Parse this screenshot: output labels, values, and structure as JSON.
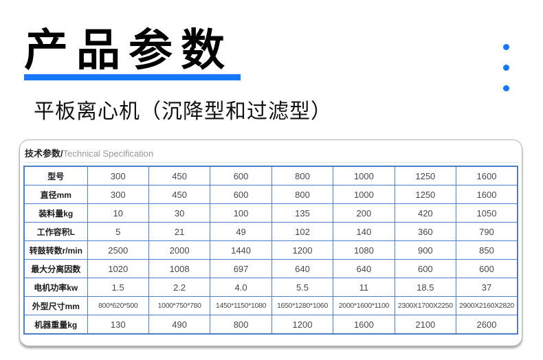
{
  "page": {
    "title": "产品参数",
    "subtitle": "平板离心机（沉降型和过滤型）"
  },
  "colors": {
    "accent": "#1777ff",
    "table_border": "#4f7ec9"
  },
  "card": {
    "header_zh": "技术参数/",
    "header_en": "Technical Specification",
    "table": {
      "rows": [
        {
          "label": "型号",
          "values": [
            "300",
            "450",
            "600",
            "800",
            "1000",
            "1250",
            "1600"
          ]
        },
        {
          "label": "直径mm",
          "values": [
            "300",
            "450",
            "600",
            "800",
            "1000",
            "1250",
            "1600"
          ]
        },
        {
          "label": "装料量kg",
          "values": [
            "10",
            "30",
            "100",
            "135",
            "200",
            "420",
            "1050"
          ]
        },
        {
          "label": "工作容积L",
          "values": [
            "5",
            "21",
            "49",
            "102",
            "140",
            "360",
            "790"
          ]
        },
        {
          "label": "转鼓转数r/min",
          "values": [
            "2500",
            "2000",
            "1440",
            "1200",
            "1080",
            "900",
            "850"
          ]
        },
        {
          "label": "最大分离因数",
          "values": [
            "1020",
            "1008",
            "697",
            "640",
            "640",
            "600",
            "600"
          ]
        },
        {
          "label": "电机功率kw",
          "values": [
            "1.5",
            "2.2",
            "4.0",
            "5.5",
            "11",
            "18.5",
            "37"
          ]
        },
        {
          "label": "外型尺寸mm",
          "values": [
            "800*620*500",
            "1000*750*780",
            "1450*1150*1080",
            "1650*1280*1060",
            "2000*1600*1100",
            "2300X1700X2250",
            "2900X2160X2820"
          ]
        },
        {
          "label": "机器重量kg",
          "values": [
            "130",
            "490",
            "800",
            "1200",
            "1600",
            "2100",
            "2600"
          ]
        }
      ]
    }
  }
}
